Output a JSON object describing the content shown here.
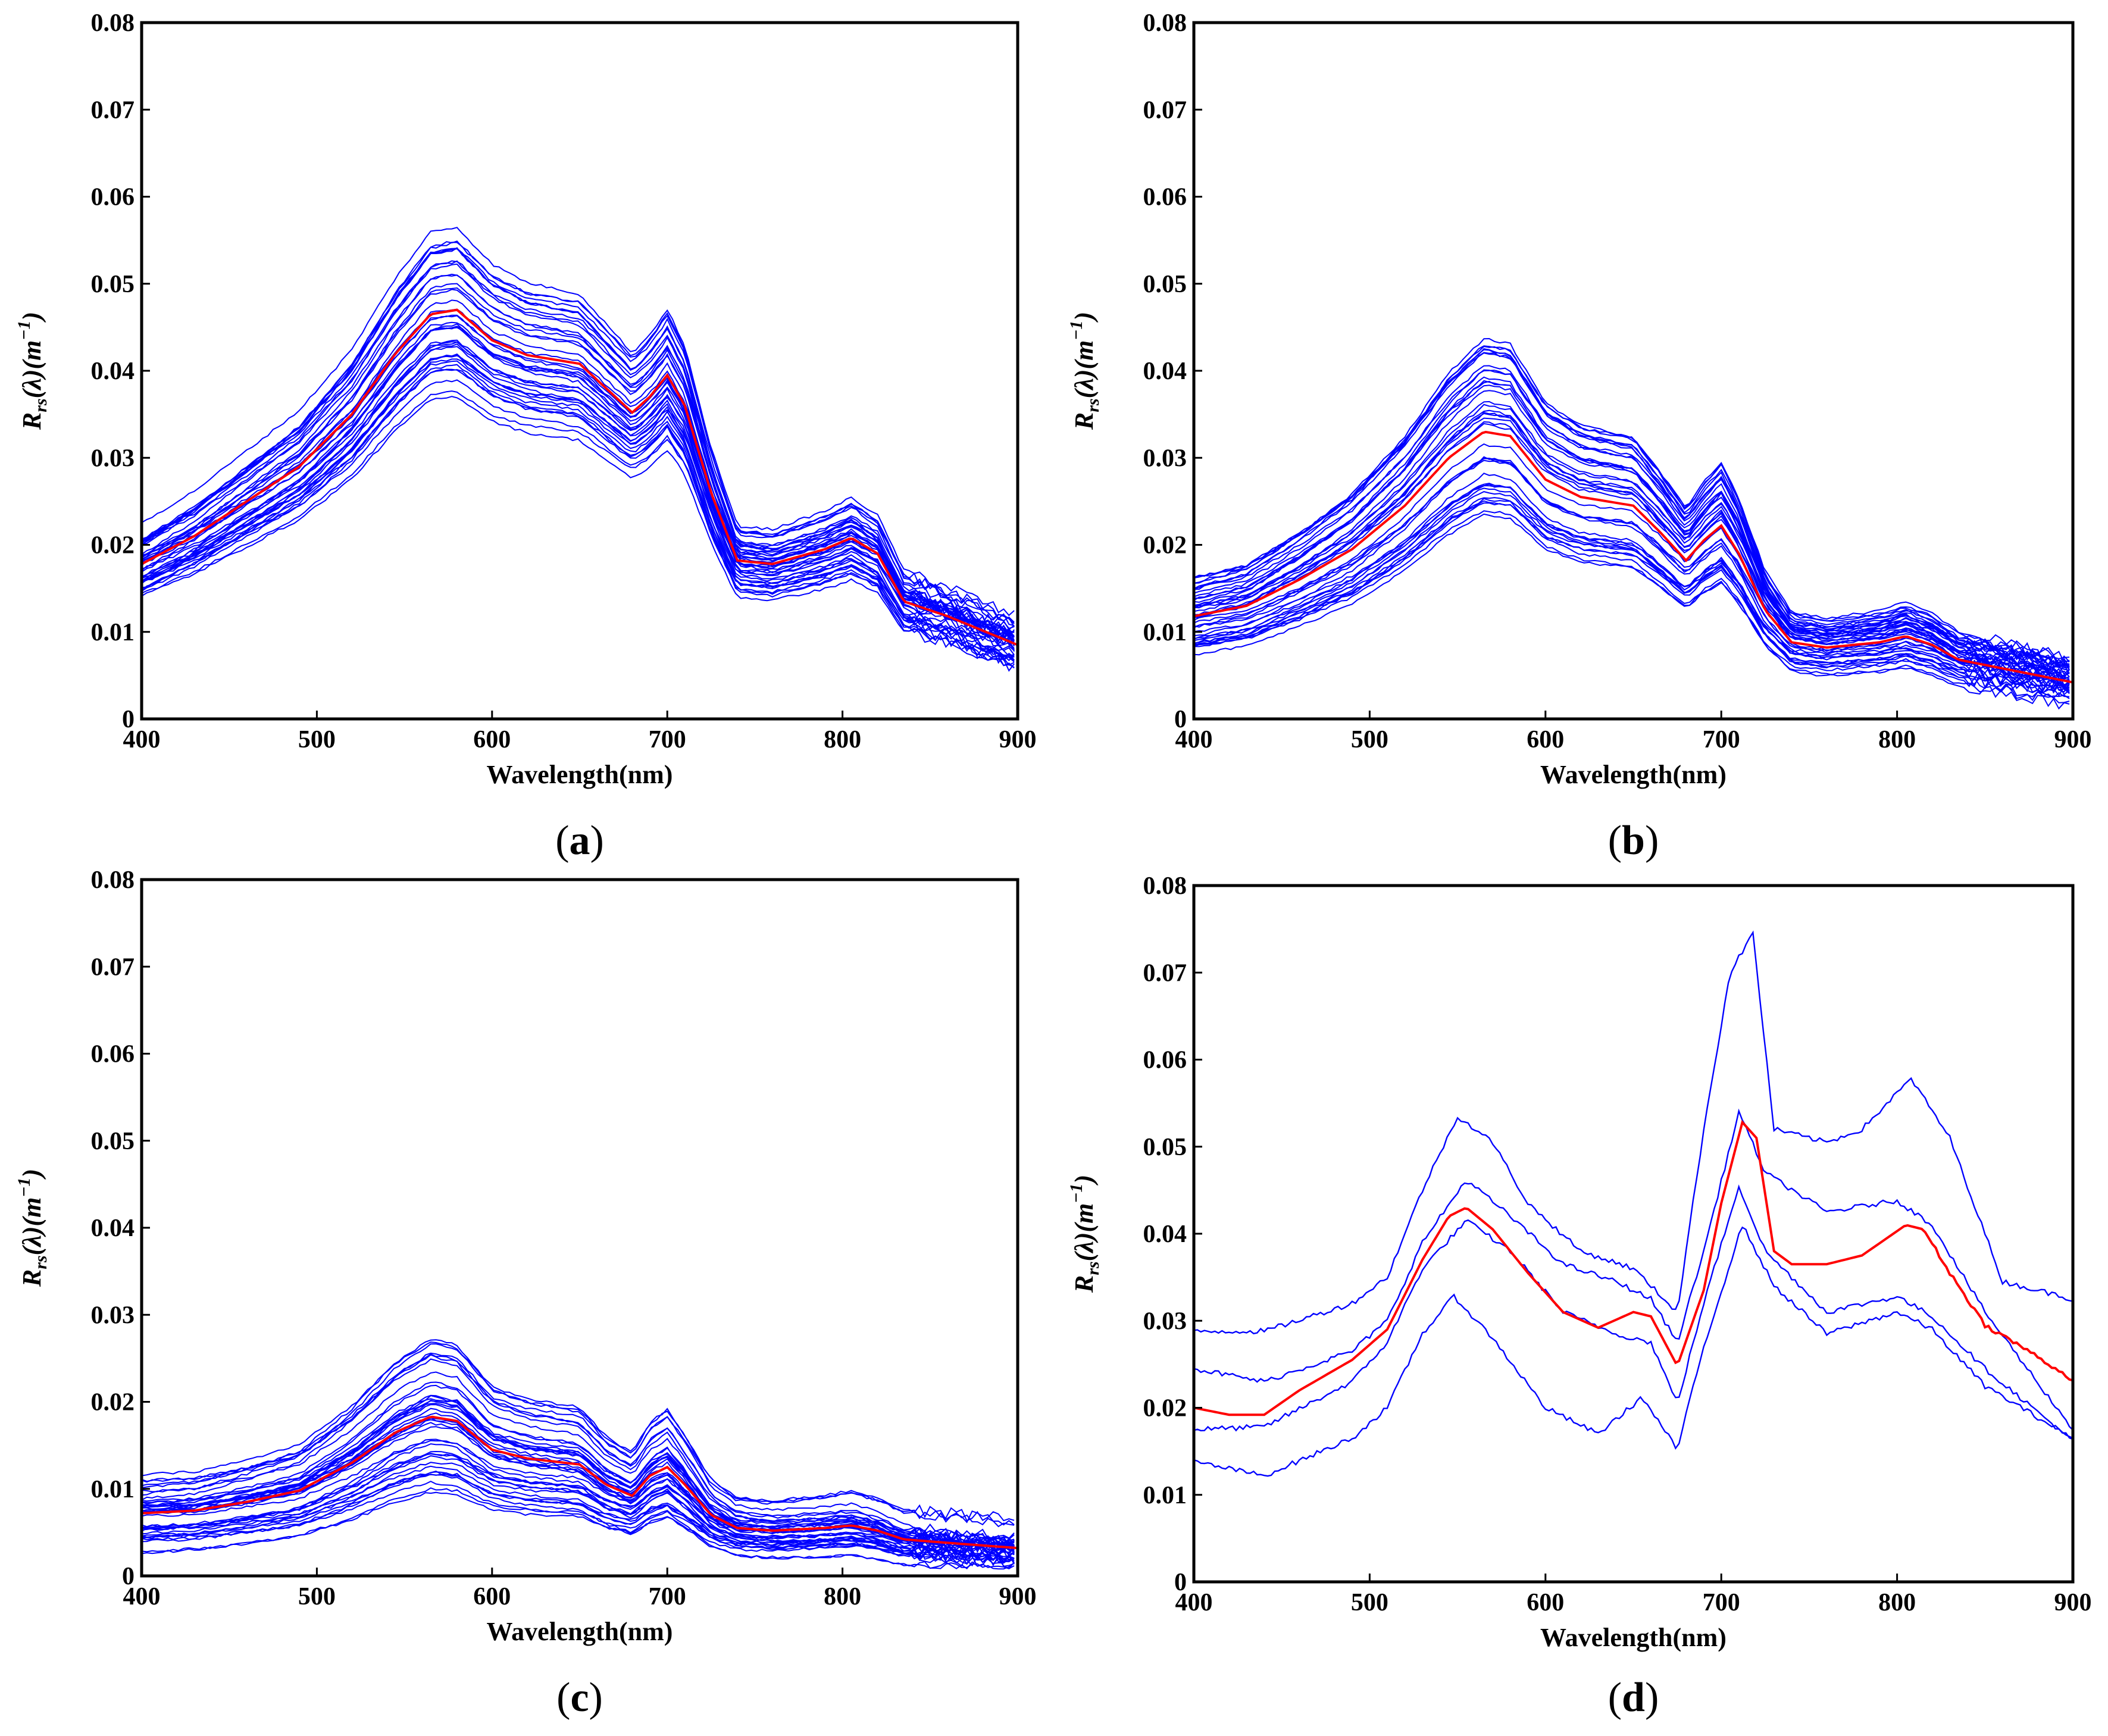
{
  "chart_data": [
    {
      "type": "line",
      "caption": "(a)",
      "xlabel": "Wavelength(nm)",
      "ylabel": "R_rs(λ)(m^-1)",
      "xlim": [
        400,
        900
      ],
      "ylim": [
        0,
        0.08
      ],
      "xticks": [
        "400",
        "500",
        "600",
        "700",
        "800",
        "900"
      ],
      "yticks": [
        "0",
        "0.01",
        "0.02",
        "0.03",
        "0.04",
        "0.05",
        "0.06",
        "0.07",
        "0.08"
      ],
      "grid": false,
      "colors": {
        "samples": "#0000ff",
        "mean": "#ff0000"
      },
      "mean_series": {
        "x": [
          400,
          430,
          460,
          490,
          520,
          545,
          565,
          580,
          600,
          620,
          650,
          665,
          680,
          690,
          700,
          710,
          725,
          740,
          760,
          790,
          805,
          820,
          835,
          860,
          900
        ],
        "y": [
          0.0178,
          0.021,
          0.025,
          0.029,
          0.035,
          0.042,
          0.0465,
          0.047,
          0.0435,
          0.0418,
          0.0408,
          0.038,
          0.0352,
          0.037,
          0.0395,
          0.036,
          0.026,
          0.0182,
          0.0178,
          0.0195,
          0.0208,
          0.019,
          0.0135,
          0.0118,
          0.0085
        ]
      },
      "sample_envelope": {
        "upper_scale": 1.2,
        "lower_scale": 0.78,
        "count": 40
      }
    },
    {
      "type": "line",
      "caption": "(b)",
      "xlabel": "Wavelength(nm)",
      "ylabel": "R_rs(λ)(m^-1)",
      "xlim": [
        400,
        900
      ],
      "ylim": [
        0,
        0.08
      ],
      "xticks": [
        "400",
        "500",
        "600",
        "700",
        "800",
        "900"
      ],
      "yticks": [
        "0",
        "0.01",
        "0.02",
        "0.03",
        "0.04",
        "0.05",
        "0.06",
        "0.07",
        "0.08"
      ],
      "grid": false,
      "colors": {
        "samples": "#0000ff",
        "mean": "#ff0000"
      },
      "mean_series": {
        "x": [
          400,
          430,
          460,
          490,
          520,
          545,
          565,
          580,
          600,
          620,
          650,
          665,
          680,
          690,
          700,
          710,
          725,
          740,
          760,
          790,
          805,
          820,
          835,
          860,
          900
        ],
        "y": [
          0.0118,
          0.013,
          0.016,
          0.0195,
          0.0245,
          0.03,
          0.033,
          0.0325,
          0.0275,
          0.0255,
          0.0245,
          0.0215,
          0.0182,
          0.0205,
          0.0222,
          0.019,
          0.0125,
          0.0088,
          0.0082,
          0.0088,
          0.0095,
          0.0085,
          0.0068,
          0.0058,
          0.0042
        ]
      },
      "sample_envelope": {
        "upper_scale": 1.35,
        "lower_scale": 0.72,
        "count": 40
      }
    },
    {
      "type": "line",
      "caption": "(c)",
      "xlabel": "Wavelength(nm)",
      "ylabel": "R_rs(λ)(m^-1)",
      "xlim": [
        400,
        900
      ],
      "ylim": [
        0,
        0.08
      ],
      "xticks": [
        "400",
        "500",
        "600",
        "700",
        "800",
        "900"
      ],
      "yticks": [
        "0",
        "0.01",
        "0.02",
        "0.03",
        "0.04",
        "0.05",
        "0.06",
        "0.07",
        "0.08"
      ],
      "grid": false,
      "colors": {
        "samples": "#0000ff",
        "mean": "#ff0000"
      },
      "mean_series": {
        "x": [
          400,
          430,
          460,
          490,
          520,
          545,
          565,
          580,
          600,
          620,
          650,
          665,
          680,
          690,
          700,
          710,
          725,
          740,
          760,
          790,
          805,
          820,
          835,
          860,
          900
        ],
        "y": [
          0.0072,
          0.0075,
          0.0085,
          0.0098,
          0.013,
          0.0165,
          0.0183,
          0.0178,
          0.0145,
          0.0135,
          0.0128,
          0.0105,
          0.0092,
          0.0115,
          0.0125,
          0.0105,
          0.007,
          0.0055,
          0.0052,
          0.0055,
          0.0058,
          0.0052,
          0.0042,
          0.0038,
          0.0032
        ]
      },
      "sample_envelope": {
        "upper_scale": 1.5,
        "lower_scale": 0.45,
        "count": 40
      }
    },
    {
      "type": "line",
      "caption": "(d)",
      "xlabel": "Wavelength(nm)",
      "ylabel": "R_rs(λ)(m^-1)",
      "xlim": [
        400,
        900
      ],
      "ylim": [
        0,
        0.08
      ],
      "xticks": [
        "400",
        "500",
        "600",
        "700",
        "800",
        "900"
      ],
      "yticks": [
        "0",
        "0.01",
        "0.02",
        "0.03",
        "0.04",
        "0.05",
        "0.06",
        "0.07",
        "0.08"
      ],
      "grid": false,
      "colors": {
        "samples": "#0000ff",
        "mean": "#ff0000"
      },
      "mean_series": {
        "x": [
          400,
          420,
          440,
          460,
          490,
          510,
          530,
          545,
          555,
          570,
          590,
          610,
          630,
          650,
          660,
          675,
          690,
          700,
          712,
          720,
          730,
          740,
          760,
          780,
          805,
          815,
          830,
          850,
          875,
          900
        ],
        "y": [
          0.02,
          0.0192,
          0.0192,
          0.022,
          0.0255,
          0.029,
          0.037,
          0.042,
          0.043,
          0.0405,
          0.0355,
          0.031,
          0.0292,
          0.031,
          0.0305,
          0.0248,
          0.0335,
          0.0435,
          0.0528,
          0.051,
          0.038,
          0.0365,
          0.0365,
          0.0375,
          0.041,
          0.0405,
          0.0355,
          0.0295,
          0.0265,
          0.0232
        ]
      },
      "samples": [
        {
          "x": [
            400,
            440,
            490,
            510,
            530,
            550,
            570,
            590,
            620,
            650,
            675,
            690,
            705,
            718,
            730,
            760,
            780,
            808,
            830,
            860,
            900
          ],
          "y": [
            0.0288,
            0.0288,
            0.032,
            0.035,
            0.045,
            0.0535,
            0.0505,
            0.0435,
            0.038,
            0.036,
            0.031,
            0.052,
            0.07,
            0.0745,
            0.052,
            0.0505,
            0.052,
            0.0578,
            0.051,
            0.0345,
            0.0325
          ]
        },
        {
          "x": [
            400,
            440,
            490,
            510,
            530,
            555,
            580,
            610,
            640,
            660,
            675,
            690,
            710,
            725,
            760,
            800,
            820,
            850,
            900
          ],
          "y": [
            0.0245,
            0.023,
            0.0265,
            0.03,
            0.039,
            0.0462,
            0.042,
            0.0365,
            0.0345,
            0.0325,
            0.0275,
            0.038,
            0.054,
            0.047,
            0.0425,
            0.0438,
            0.041,
            0.031,
            0.0175
          ]
        },
        {
          "x": [
            400,
            440,
            490,
            510,
            530,
            555,
            580,
            610,
            640,
            660,
            675,
            690,
            710,
            725,
            760,
            800,
            820,
            850,
            900
          ],
          "y": [
            0.0175,
            0.0178,
            0.023,
            0.0275,
            0.036,
            0.0415,
            0.038,
            0.031,
            0.0285,
            0.0275,
            0.0205,
            0.032,
            0.0455,
            0.038,
            0.031,
            0.0328,
            0.0305,
            0.0245,
            0.0162
          ]
        },
        {
          "x": [
            400,
            440,
            490,
            510,
            530,
            548,
            570,
            600,
            630,
            655,
            675,
            690,
            712,
            730,
            760,
            800,
            820,
            850,
            900
          ],
          "y": [
            0.0138,
            0.0122,
            0.0165,
            0.02,
            0.0285,
            0.0328,
            0.028,
            0.02,
            0.017,
            0.0212,
            0.0152,
            0.027,
            0.041,
            0.034,
            0.0285,
            0.031,
            0.029,
            0.0225,
            0.0165
          ]
        }
      ]
    }
  ]
}
